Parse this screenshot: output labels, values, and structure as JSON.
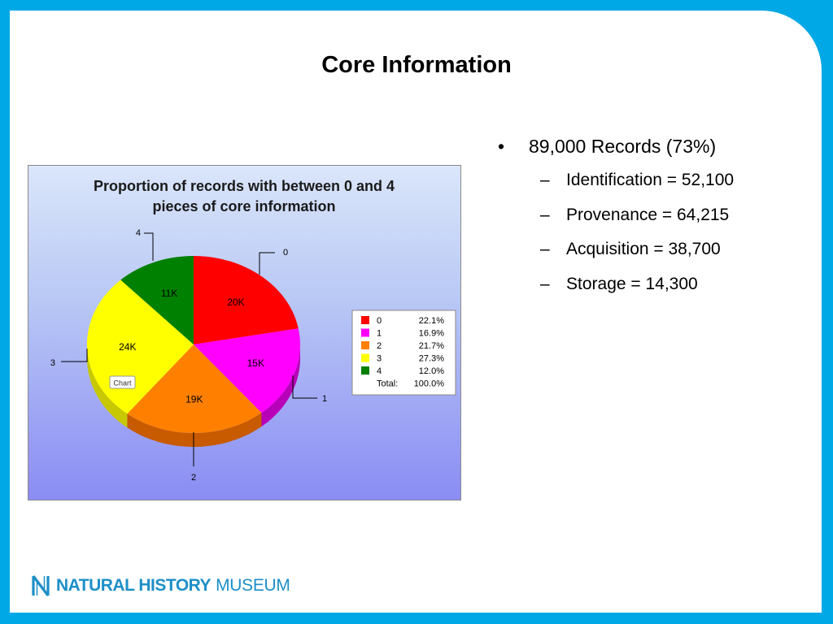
{
  "slide": {
    "title": "Core Information",
    "bullets": {
      "main": "89,000 Records (73%)",
      "bullet_glyph": "•",
      "dash_glyph": "–",
      "sub": [
        "Identification = 52,100",
        "Provenance = 64,215",
        "Acquisition = 38,700",
        "Storage = 14,300"
      ]
    },
    "logo": {
      "bold": "NATURAL HISTORY",
      "light": "MUSEUM",
      "color": "#1d8fc7",
      "icon": "nhm-n-logo-icon"
    },
    "chart_button": "Chart"
  },
  "chart_data": {
    "type": "pie",
    "title_lines": [
      "Proportion of records with between 0 and 4",
      "pieces of core information"
    ],
    "legend_position": "right",
    "slices": [
      {
        "label": "0",
        "pct": "22.1%",
        "value_label": "20K",
        "fraction": 0.221,
        "color": "#ff0000",
        "side": "#c00000"
      },
      {
        "label": "1",
        "pct": "16.9%",
        "value_label": "15K",
        "fraction": 0.169,
        "color": "#ff00ff",
        "side": "#b800b8"
      },
      {
        "label": "2",
        "pct": "21.7%",
        "value_label": "19K",
        "fraction": 0.217,
        "color": "#ff8000",
        "side": "#c85a00"
      },
      {
        "label": "3",
        "pct": "27.3%",
        "value_label": "24K",
        "fraction": 0.273,
        "color": "#ffff00",
        "side": "#c8c800"
      },
      {
        "label": "4",
        "pct": "12.0%",
        "value_label": "11K",
        "fraction": 0.12,
        "color": "#008000",
        "side": "#005500"
      }
    ],
    "legend_total_label": "Total:",
    "legend_total_value": "100.0%"
  }
}
